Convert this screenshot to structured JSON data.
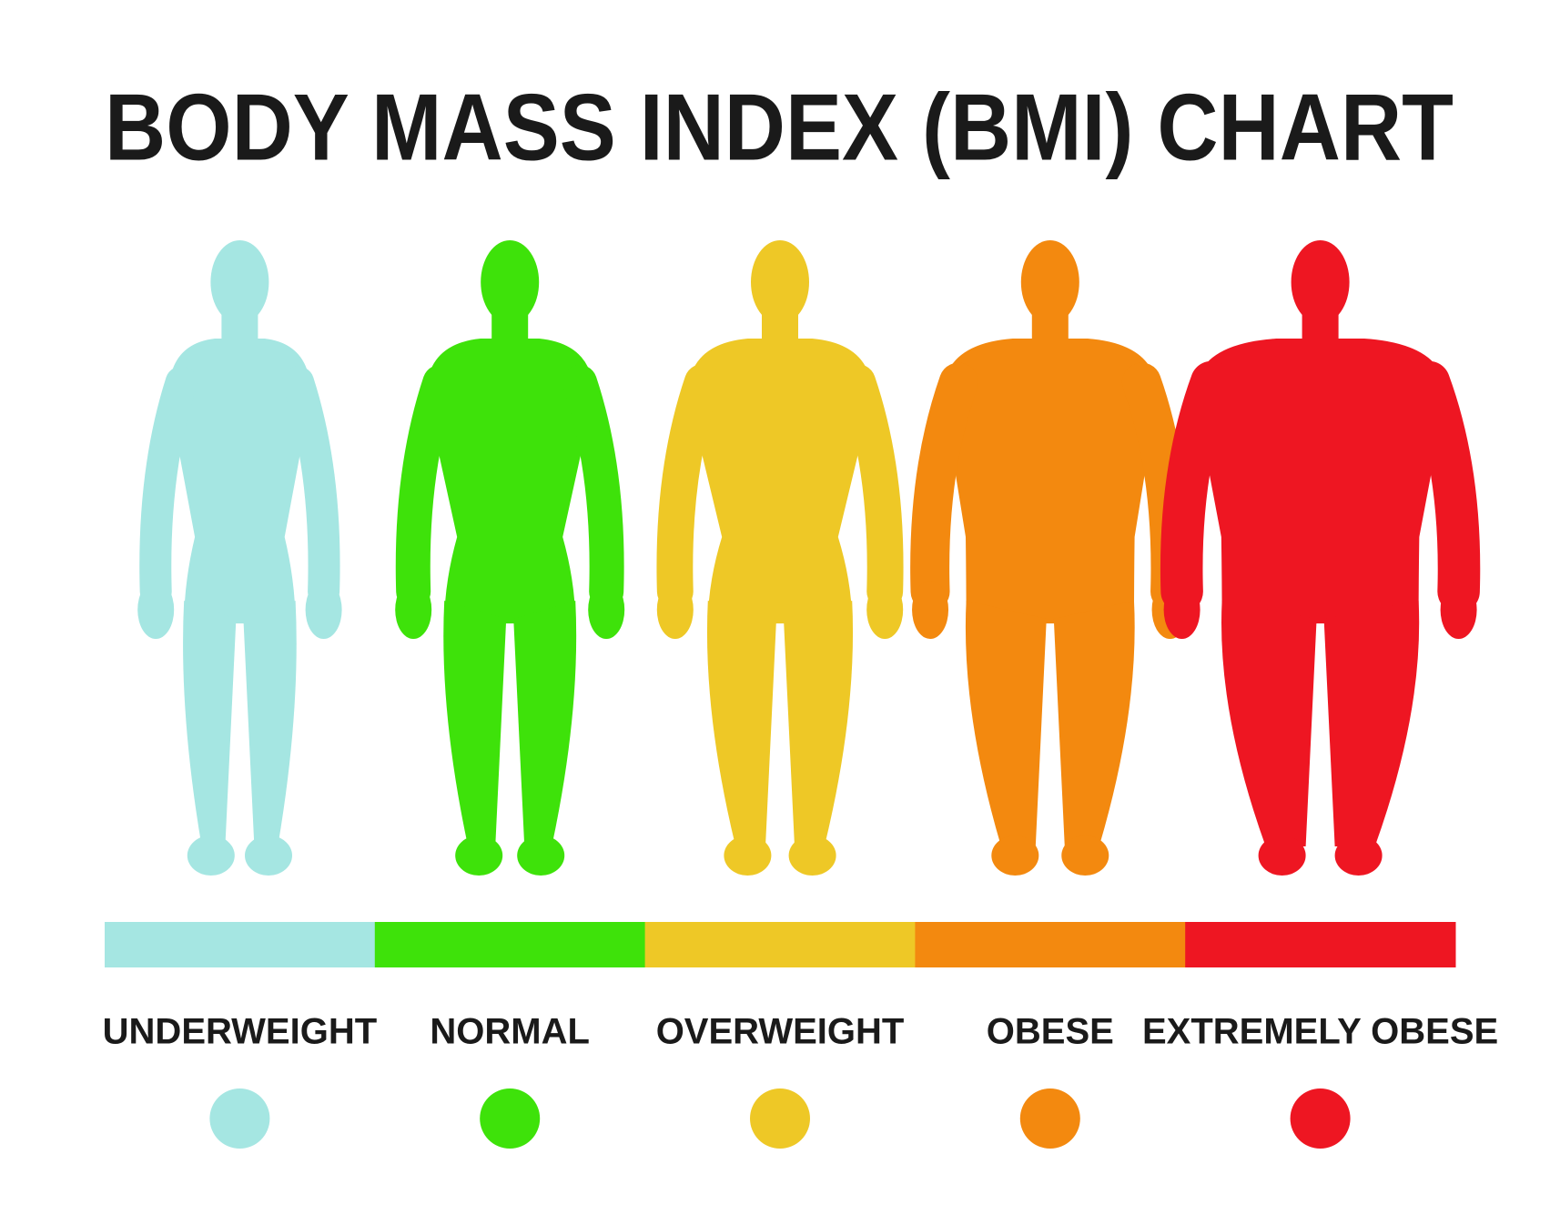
{
  "title": "BODY MASS INDEX (BMI) CHART",
  "categories": [
    {
      "label": "UNDERWEIGHT",
      "color": "#a5e6e2"
    },
    {
      "label": "NORMAL",
      "color": "#3ee20a"
    },
    {
      "label": "OVERWEIGHT",
      "color": "#eec826"
    },
    {
      "label": "OBESE",
      "color": "#f3890f"
    },
    {
      "label": "EXTREMELY OBESE",
      "color": "#ee1622"
    }
  ]
}
